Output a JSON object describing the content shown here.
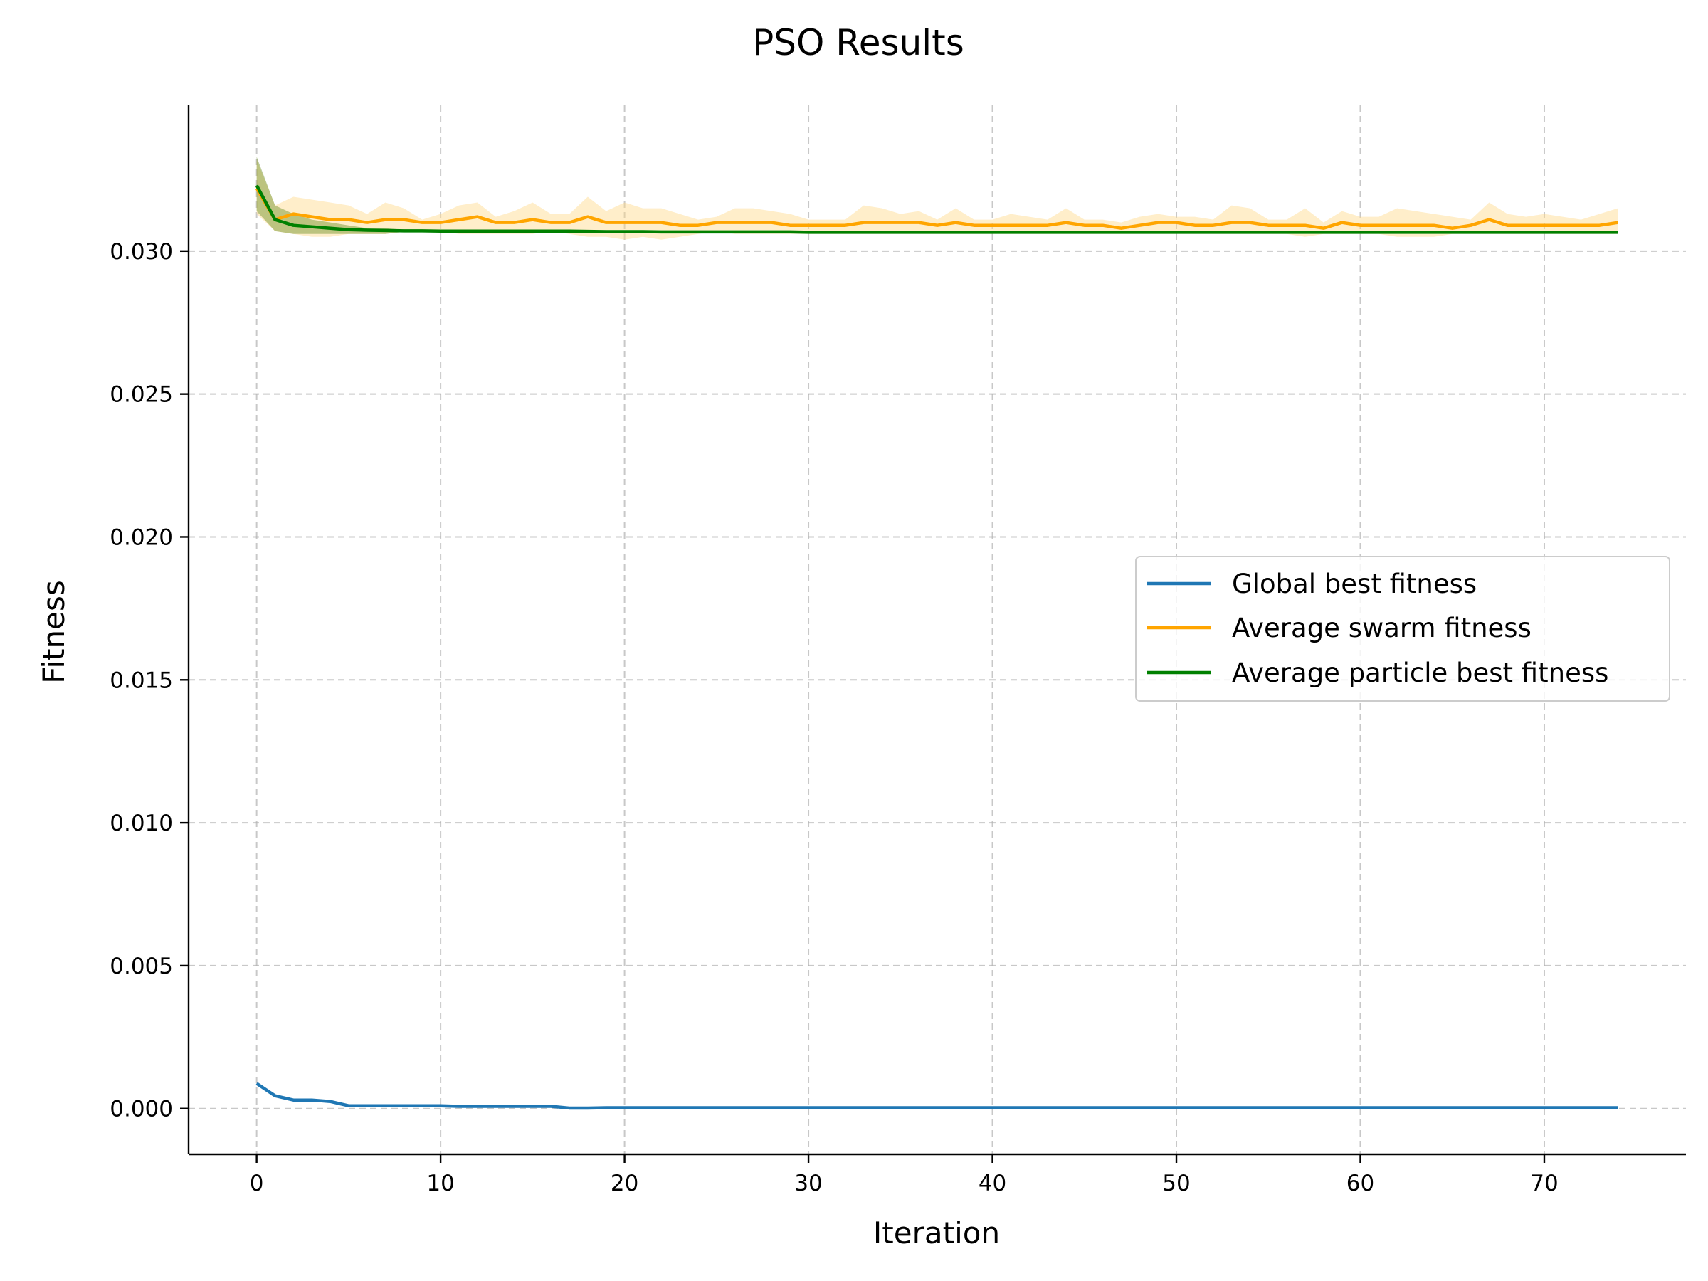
{
  "chart_data": {
    "type": "line",
    "title": "PSO Results",
    "xlabel": "Iteration",
    "ylabel": "Fitness",
    "xlim": [
      -3.7,
      77.7
    ],
    "ylim": [
      -0.0016,
      0.0351
    ],
    "xticks": [
      0,
      10,
      20,
      30,
      40,
      50,
      60,
      70
    ],
    "xtick_labels": [
      "0",
      "10",
      "20",
      "30",
      "40",
      "50",
      "60",
      "70"
    ],
    "yticks": [
      0.0,
      0.005,
      0.01,
      0.015,
      0.02,
      0.025,
      0.03
    ],
    "ytick_labels": [
      "0.000",
      "0.005",
      "0.010",
      "0.015",
      "0.020",
      "0.025",
      "0.030"
    ],
    "grid": true,
    "legend_position": "center-right",
    "x": [
      0,
      1,
      2,
      3,
      4,
      5,
      6,
      7,
      8,
      9,
      10,
      11,
      12,
      13,
      14,
      15,
      16,
      17,
      18,
      19,
      20,
      21,
      22,
      23,
      24,
      25,
      26,
      27,
      28,
      29,
      30,
      31,
      32,
      33,
      34,
      35,
      36,
      37,
      38,
      39,
      40,
      41,
      42,
      43,
      44,
      45,
      46,
      47,
      48,
      49,
      50,
      51,
      52,
      53,
      54,
      55,
      56,
      57,
      58,
      59,
      60,
      61,
      62,
      63,
      64,
      65,
      66,
      67,
      68,
      69,
      70,
      71,
      72,
      73,
      74
    ],
    "series": [
      {
        "name": "Global best fitness",
        "color": "#1f77b4",
        "values": [
          0.00088,
          0.00045,
          0.0003,
          0.0003,
          0.00025,
          0.0001,
          0.0001,
          0.0001,
          0.0001,
          0.0001,
          0.0001,
          8e-05,
          8e-05,
          8e-05,
          8e-05,
          8e-05,
          8e-05,
          2e-05,
          2e-05,
          3e-05,
          3e-05,
          3e-05,
          3e-05,
          3e-05,
          3e-05,
          3e-05,
          3e-05,
          3e-05,
          3e-05,
          3e-05,
          3e-05,
          3e-05,
          3e-05,
          3e-05,
          3e-05,
          3e-05,
          3e-05,
          3e-05,
          3e-05,
          3e-05,
          3e-05,
          3e-05,
          3e-05,
          3e-05,
          3e-05,
          3e-05,
          3e-05,
          3e-05,
          3e-05,
          3e-05,
          3e-05,
          3e-05,
          3e-05,
          3e-05,
          3e-05,
          3e-05,
          3e-05,
          3e-05,
          3e-05,
          3e-05,
          3e-05,
          3e-05,
          3e-05,
          3e-05,
          3e-05,
          3e-05,
          3e-05,
          3e-05,
          3e-05,
          3e-05,
          3e-05,
          3e-05,
          3e-05,
          3e-05,
          3e-05
        ]
      },
      {
        "name": "Average swarm fitness",
        "color": "#ffa500",
        "band_color": "#ffd98a",
        "values": [
          0.0322,
          0.0311,
          0.0313,
          0.0312,
          0.0311,
          0.0311,
          0.031,
          0.0311,
          0.0311,
          0.031,
          0.031,
          0.0311,
          0.0312,
          0.031,
          0.031,
          0.0311,
          0.031,
          0.031,
          0.0312,
          0.031,
          0.031,
          0.031,
          0.031,
          0.0309,
          0.0309,
          0.031,
          0.031,
          0.031,
          0.031,
          0.0309,
          0.0309,
          0.0309,
          0.0309,
          0.031,
          0.031,
          0.031,
          0.031,
          0.0309,
          0.031,
          0.0309,
          0.0309,
          0.0309,
          0.0309,
          0.0309,
          0.031,
          0.0309,
          0.0309,
          0.0308,
          0.0309,
          0.031,
          0.031,
          0.0309,
          0.0309,
          0.031,
          0.031,
          0.0309,
          0.0309,
          0.0309,
          0.0308,
          0.031,
          0.0309,
          0.0309,
          0.0309,
          0.0309,
          0.0309,
          0.0308,
          0.0309,
          0.0311,
          0.0309,
          0.0309,
          0.0309,
          0.0309,
          0.0309,
          0.0309,
          0.031
        ],
        "band_upper": [
          0.0332,
          0.0316,
          0.0319,
          0.0318,
          0.0317,
          0.0316,
          0.0313,
          0.0317,
          0.0315,
          0.0311,
          0.0313,
          0.0316,
          0.0317,
          0.0312,
          0.0314,
          0.0317,
          0.0313,
          0.0313,
          0.0319,
          0.0314,
          0.0317,
          0.0315,
          0.0315,
          0.0313,
          0.0311,
          0.0312,
          0.0315,
          0.0315,
          0.0314,
          0.0313,
          0.0311,
          0.0311,
          0.0311,
          0.0316,
          0.0315,
          0.0313,
          0.0314,
          0.0311,
          0.0315,
          0.0311,
          0.0311,
          0.0313,
          0.0312,
          0.0311,
          0.0315,
          0.0311,
          0.0311,
          0.031,
          0.0312,
          0.0313,
          0.0312,
          0.0312,
          0.0311,
          0.0316,
          0.0315,
          0.0311,
          0.0311,
          0.0315,
          0.031,
          0.0314,
          0.0312,
          0.0312,
          0.0315,
          0.0314,
          0.0313,
          0.0312,
          0.0311,
          0.0317,
          0.0313,
          0.0312,
          0.0313,
          0.0312,
          0.0311,
          0.0313,
          0.0315
        ],
        "band_lower": [
          0.0313,
          0.0307,
          0.0306,
          0.0305,
          0.0305,
          0.0306,
          0.0306,
          0.0306,
          0.0307,
          0.0307,
          0.0307,
          0.0306,
          0.0306,
          0.0306,
          0.0306,
          0.0306,
          0.0307,
          0.0306,
          0.0305,
          0.0305,
          0.0304,
          0.0305,
          0.0304,
          0.0305,
          0.0306,
          0.0307,
          0.0306,
          0.0306,
          0.0306,
          0.0306,
          0.0306,
          0.0306,
          0.0306,
          0.0306,
          0.0306,
          0.0306,
          0.0306,
          0.0306,
          0.0306,
          0.0306,
          0.0306,
          0.0306,
          0.0306,
          0.0306,
          0.0306,
          0.0306,
          0.0306,
          0.0306,
          0.0306,
          0.0306,
          0.0306,
          0.0306,
          0.0306,
          0.0306,
          0.0306,
          0.0306,
          0.0306,
          0.0305,
          0.0306,
          0.0306,
          0.0306,
          0.0306,
          0.0305,
          0.0305,
          0.0305,
          0.0306,
          0.0306,
          0.0306,
          0.0306,
          0.0306,
          0.0306,
          0.0306,
          0.0306,
          0.0306,
          0.0306
        ]
      },
      {
        "name": "Average particle best fitness",
        "color": "#008000",
        "band_color": "#6b8e23",
        "values": [
          0.0323,
          0.0311,
          0.0309,
          0.03085,
          0.0308,
          0.03075,
          0.03073,
          0.03072,
          0.03071,
          0.03071,
          0.0307,
          0.0307,
          0.0307,
          0.0307,
          0.0307,
          0.0307,
          0.0307,
          0.0307,
          0.03069,
          0.03068,
          0.03068,
          0.03068,
          0.03067,
          0.03067,
          0.03067,
          0.03067,
          0.03067,
          0.03067,
          0.03067,
          0.03067,
          0.03066,
          0.03066,
          0.03066,
          0.03066,
          0.03066,
          0.03066,
          0.03066,
          0.03066,
          0.03066,
          0.03066,
          0.03066,
          0.03066,
          0.03066,
          0.03066,
          0.03066,
          0.03066,
          0.03066,
          0.03066,
          0.03066,
          0.03066,
          0.03066,
          0.03066,
          0.03066,
          0.03066,
          0.03066,
          0.03066,
          0.03066,
          0.03066,
          0.03066,
          0.03066,
          0.03066,
          0.03066,
          0.03066,
          0.03066,
          0.03066,
          0.03066,
          0.03066,
          0.03066,
          0.03066,
          0.03066,
          0.03066,
          0.03066,
          0.03066,
          0.03066,
          0.03066
        ],
        "band_upper": [
          0.0333,
          0.0316,
          0.0313,
          0.0311,
          0.031,
          0.0309,
          0.0308,
          0.0308,
          0.03075,
          0.03074,
          0.03073,
          0.03072,
          0.03072,
          0.03072,
          0.03072,
          0.03072,
          0.03072,
          0.03071,
          0.0307,
          0.03069,
          0.03069,
          0.03069,
          0.03068,
          0.03068,
          0.03068,
          0.03068,
          0.03068,
          0.03068,
          0.03068,
          0.03068,
          0.03067,
          0.03067,
          0.03067,
          0.03067,
          0.03067,
          0.03067,
          0.03067,
          0.03067,
          0.03067,
          0.03067,
          0.03067,
          0.03067,
          0.03067,
          0.03067,
          0.03067,
          0.03067,
          0.03067,
          0.03067,
          0.03067,
          0.03067,
          0.03067,
          0.03067,
          0.03067,
          0.03067,
          0.03067,
          0.03067,
          0.03067,
          0.03067,
          0.03067,
          0.03067,
          0.03067,
          0.03067,
          0.03067,
          0.03067,
          0.03067,
          0.03067,
          0.03067,
          0.03067,
          0.03067,
          0.03067,
          0.03067,
          0.03067,
          0.03067,
          0.03067,
          0.03067
        ],
        "band_lower": [
          0.0314,
          0.0307,
          0.0306,
          0.0306,
          0.0306,
          0.0306,
          0.0306,
          0.0306,
          0.03067,
          0.03068,
          0.03067,
          0.03068,
          0.03068,
          0.03068,
          0.03068,
          0.03068,
          0.03068,
          0.03069,
          0.03068,
          0.03067,
          0.03067,
          0.03067,
          0.03066,
          0.03066,
          0.03066,
          0.03066,
          0.03066,
          0.03066,
          0.03066,
          0.03066,
          0.03065,
          0.03065,
          0.03065,
          0.03065,
          0.03065,
          0.03065,
          0.03065,
          0.03065,
          0.03065,
          0.03065,
          0.03065,
          0.03065,
          0.03065,
          0.03065,
          0.03065,
          0.03065,
          0.03065,
          0.03065,
          0.03065,
          0.03065,
          0.03065,
          0.03065,
          0.03065,
          0.03065,
          0.03065,
          0.03065,
          0.03065,
          0.03065,
          0.03065,
          0.03065,
          0.03065,
          0.03065,
          0.03065,
          0.03065,
          0.03065,
          0.03065,
          0.03065,
          0.03065,
          0.03065,
          0.03065,
          0.03065,
          0.03065,
          0.03065,
          0.03065,
          0.03065
        ]
      }
    ]
  }
}
